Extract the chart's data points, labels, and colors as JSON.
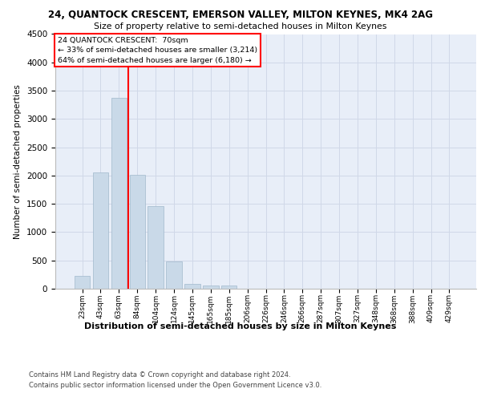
{
  "title_line1": "24, QUANTOCK CRESCENT, EMERSON VALLEY, MILTON KEYNES, MK4 2AG",
  "title_line2": "Size of property relative to semi-detached houses in Milton Keynes",
  "xlabel": "Distribution of semi-detached houses by size in Milton Keynes",
  "ylabel": "Number of semi-detached properties",
  "categories": [
    "23sqm",
    "43sqm",
    "63sqm",
    "84sqm",
    "104sqm",
    "124sqm",
    "145sqm",
    "165sqm",
    "185sqm",
    "206sqm",
    "226sqm",
    "246sqm",
    "266sqm",
    "287sqm",
    "307sqm",
    "327sqm",
    "348sqm",
    "368sqm",
    "388sqm",
    "409sqm",
    "429sqm"
  ],
  "bar_heights": [
    230,
    2050,
    3380,
    2010,
    1460,
    480,
    90,
    60,
    50,
    0,
    0,
    0,
    0,
    0,
    0,
    0,
    0,
    0,
    0,
    0,
    0
  ],
  "bar_color": "#c9d9e8",
  "bar_edge_color": "#a0b8cc",
  "ylim": [
    0,
    4500
  ],
  "yticks": [
    0,
    500,
    1000,
    1500,
    2000,
    2500,
    3000,
    3500,
    4000,
    4500
  ],
  "vline_x_index": 2.5,
  "annotation_text_line1": "24 QUANTOCK CRESCENT:  70sqm",
  "annotation_text_line2": "← 33% of semi-detached houses are smaller (3,214)",
  "annotation_text_line3": "64% of semi-detached houses are larger (6,180) →",
  "annotation_box_color": "white",
  "annotation_box_edge_color": "red",
  "vline_color": "red",
  "grid_color": "#d0d8e8",
  "background_color": "#e8eef8",
  "footer_line1": "Contains HM Land Registry data © Crown copyright and database right 2024.",
  "footer_line2": "Contains public sector information licensed under the Open Government Licence v3.0."
}
